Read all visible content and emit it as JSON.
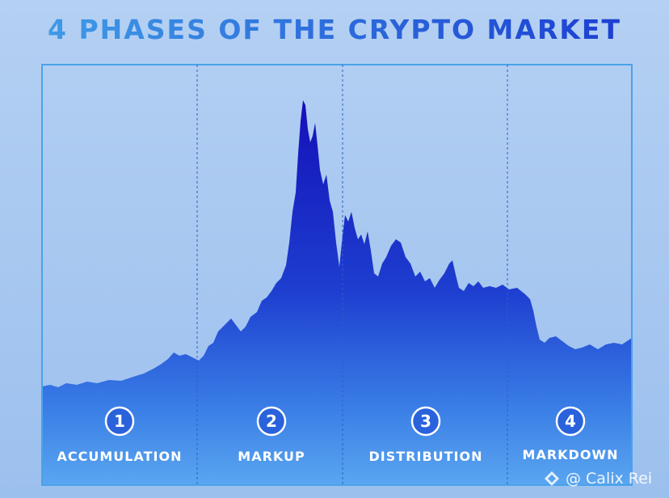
{
  "title": "4 PHASES OF THE CRYPTO MARKET",
  "phases": [
    {
      "number": "1",
      "label": "ACCUMULATION"
    },
    {
      "number": "2",
      "label": "MARKUP"
    },
    {
      "number": "3",
      "label": "DISTRIBUTION"
    },
    {
      "number": "4",
      "label": "MARKDOWN"
    }
  ],
  "watermark": "@ Calix Rei"
}
